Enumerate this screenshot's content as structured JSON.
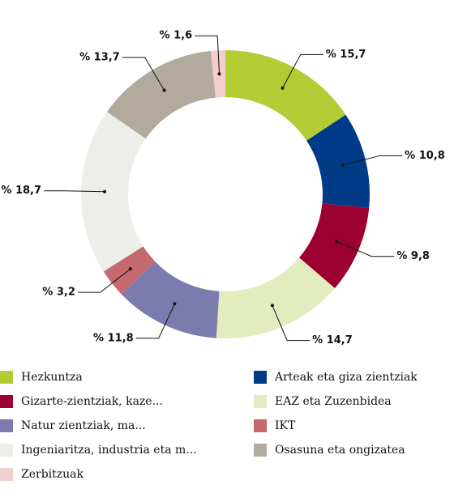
{
  "chart_data": {
    "type": "donut",
    "categories": [
      "Hezkuntza",
      "Arteak eta giza zientziak",
      "Gizarte-zientziak, kaze...",
      "EAZ eta Zuzenbidea",
      "Natur zientziak, ma...",
      "IKT",
      "Ingeniaritza, industria eta m...",
      "Osasuna eta ongizatea",
      "Zerbitzuak"
    ],
    "values": [
      15.7,
      10.8,
      9.8,
      14.7,
      11.8,
      3.2,
      18.7,
      13.7,
      1.6
    ],
    "value_labels": [
      "% 15,7",
      "% 10,8",
      "% 9,8",
      "% 14,7",
      "% 11,8",
      "% 3,2",
      "% 18,7",
      "% 13,7",
      "% 1,6"
    ],
    "colors": [
      "#b3cc34",
      "#003b87",
      "#9b0030",
      "#e3ecbf",
      "#7c7bae",
      "#c46a6e",
      "#ededea",
      "#b2aa9c",
      "#f2cfcd"
    ],
    "legend": "bottom"
  }
}
